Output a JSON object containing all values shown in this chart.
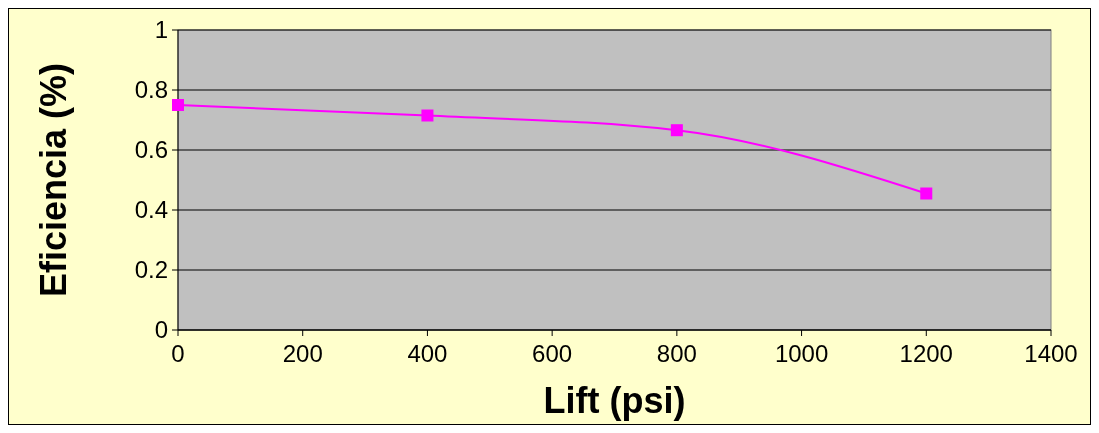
{
  "chart_data": {
    "type": "line",
    "xlabel": "Lift (psi)",
    "ylabel": "Eficiencia (%)",
    "x": [
      0,
      400,
      800,
      1200
    ],
    "series": [
      {
        "color": "#ff00ff",
        "values": [
          0.75,
          0.715,
          0.666,
          0.455
        ]
      }
    ],
    "xlim": [
      0,
      1400
    ],
    "xticks": [
      0,
      200,
      400,
      600,
      800,
      1000,
      1200,
      1400
    ],
    "ylim": [
      0,
      1
    ],
    "yticks": [
      0,
      0.2,
      0.4,
      0.6,
      0.8,
      1
    ],
    "grid": "y",
    "marker": "square",
    "line_style": "solid"
  }
}
